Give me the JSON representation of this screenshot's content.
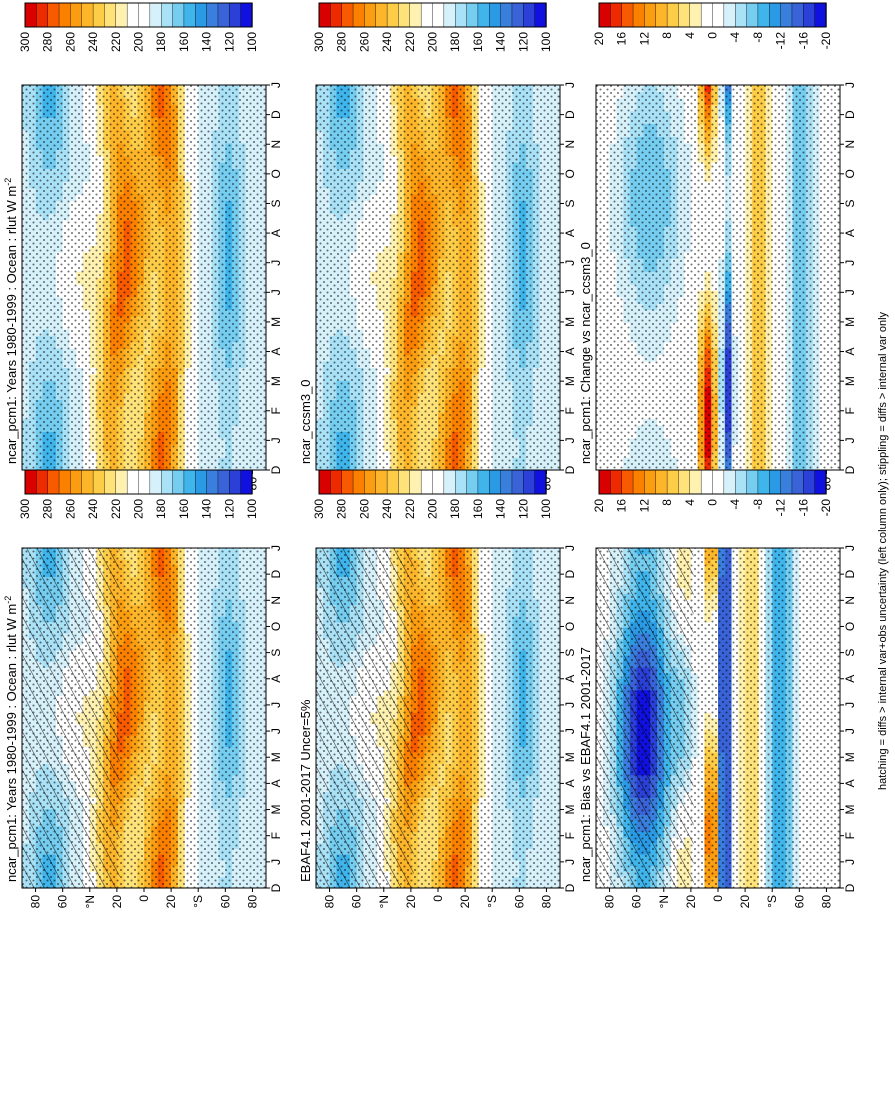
{
  "figure": {
    "footnote": "hatching = diffs > internal var+obs uncertainty (left column only); stippling = diffs > internal var only"
  },
  "colorbars": {
    "absolute": {
      "ticks": [
        "300",
        "280",
        "260",
        "240",
        "220",
        "200",
        "180",
        "160",
        "140",
        "120",
        "100"
      ],
      "colors": [
        "#d90000",
        "#ee2a00",
        "#f85a00",
        "#fb8000",
        "#fb9d10",
        "#fdb52a",
        "#fdcd48",
        "#fee27a",
        "#fff2b0",
        "#ffffff",
        "#ffffff",
        "#d7f1fb",
        "#a9e1f6",
        "#75cdf0",
        "#3fb5ec",
        "#2a9ae4",
        "#3a7fdd",
        "#3a63d8",
        "#2a40d6",
        "#1010e0"
      ],
      "range": [
        100,
        300
      ]
    },
    "difference": {
      "ticks": [
        "20",
        "16",
        "12",
        "8",
        "4",
        "0",
        "-4",
        "-8",
        "-12",
        "-16",
        "-20"
      ],
      "colors": [
        "#d90000",
        "#ee2a00",
        "#f85a00",
        "#fb8000",
        "#fb9d10",
        "#fdb52a",
        "#fdcd48",
        "#fee27a",
        "#fff2b0",
        "#ffffff",
        "#ffffff",
        "#d7f1fb",
        "#a9e1f6",
        "#75cdf0",
        "#3fb5ec",
        "#2a9ae4",
        "#3a7fdd",
        "#3a63d8",
        "#2a40d6",
        "#1010e0"
      ],
      "range": [
        -20,
        20
      ]
    }
  },
  "chart_data": [
    {
      "type": "heatmap",
      "title": "ncar_pcm1: Years 1980-1999 : Ocean : rlut W m",
      "title_sup": "-2",
      "x_ticks": [
        "D",
        "J",
        "F",
        "M",
        "A",
        "M",
        "J",
        "J",
        "A",
        "S",
        "O",
        "N",
        "D",
        "J"
      ],
      "y_ticks": [
        "80",
        "60",
        "°N",
        "20",
        "0",
        "20",
        "°S",
        "60",
        "80"
      ],
      "scale": "absolute",
      "field": "absolute",
      "stippling": true,
      "hatching": true
    },
    {
      "type": "heatmap",
      "title": "ncar_pcm1: Years 1980-1999 : Ocean : rlut W m",
      "title_sup": "-2",
      "x_ticks": [
        "D",
        "J",
        "F",
        "M",
        "A",
        "M",
        "J",
        "J",
        "A",
        "S",
        "O",
        "N",
        "D",
        "J"
      ],
      "y_ticks": [
        "80",
        "60",
        "°N",
        "20",
        "0",
        "20",
        "°S",
        "60",
        "80"
      ],
      "scale": "absolute",
      "field": "absolute",
      "stippling": true,
      "hatching": false
    },
    {
      "type": "heatmap",
      "title": "EBAF4.1 2001-2017 Uncer=5%",
      "title_sup": "",
      "x_ticks": [
        "D",
        "J",
        "F",
        "M",
        "A",
        "M",
        "J",
        "J",
        "A",
        "S",
        "O",
        "N",
        "D",
        "J"
      ],
      "y_ticks": [
        "80",
        "60",
        "°N",
        "20",
        "0",
        "20",
        "°S",
        "60",
        "80"
      ],
      "scale": "absolute",
      "field": "absolute",
      "stippling": true,
      "hatching": true
    },
    {
      "type": "heatmap",
      "title": "ncar_ccsm3_0",
      "title_sup": "",
      "x_ticks": [
        "D",
        "J",
        "F",
        "M",
        "A",
        "M",
        "J",
        "J",
        "A",
        "S",
        "O",
        "N",
        "D",
        "J"
      ],
      "y_ticks": [
        "80",
        "60",
        "°N",
        "20",
        "0",
        "20",
        "°S",
        "60",
        "80"
      ],
      "scale": "absolute",
      "field": "absolute",
      "stippling": true,
      "hatching": false
    },
    {
      "type": "heatmap",
      "title": "ncar_pcm1: Bias vs EBAF4.1 2001-2017",
      "title_sup": "",
      "x_ticks": [
        "D",
        "J",
        "F",
        "M",
        "A",
        "M",
        "J",
        "J",
        "A",
        "S",
        "O",
        "N",
        "D",
        "J"
      ],
      "y_ticks": [
        "80",
        "60",
        "°N",
        "20",
        "0",
        "20",
        "°S",
        "60",
        "80"
      ],
      "scale": "difference",
      "field": "bias",
      "stippling": true,
      "hatching": true
    },
    {
      "type": "heatmap",
      "title": "ncar_pcm1: Change vs ncar_ccsm3_0",
      "title_sup": "",
      "x_ticks": [
        "D",
        "J",
        "F",
        "M",
        "A",
        "M",
        "J",
        "J",
        "A",
        "S",
        "O",
        "N",
        "D",
        "J"
      ],
      "y_ticks": [
        "80",
        "60",
        "°N",
        "20",
        "0",
        "20",
        "°S",
        "60",
        "80"
      ],
      "scale": "difference",
      "field": "change",
      "stippling": true,
      "hatching": false
    }
  ]
}
